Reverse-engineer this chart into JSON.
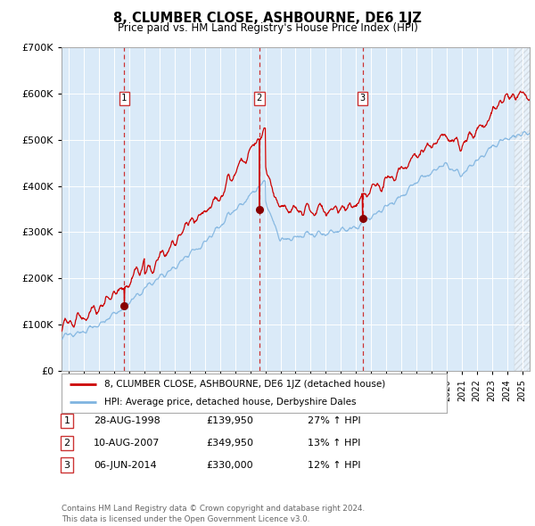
{
  "title": "8, CLUMBER CLOSE, ASHBOURNE, DE6 1JZ",
  "subtitle": "Price paid vs. HM Land Registry's House Price Index (HPI)",
  "ylim": [
    0,
    700000
  ],
  "yticks": [
    0,
    100000,
    200000,
    300000,
    400000,
    500000,
    600000,
    700000
  ],
  "ytick_labels": [
    "£0",
    "£100K",
    "£200K",
    "£300K",
    "£400K",
    "£500K",
    "£600K",
    "£700K"
  ],
  "bg_color": "#daeaf8",
  "hpi_color": "#7fb4e0",
  "price_color": "#cc0000",
  "vline_color": "#cc3333",
  "transactions": [
    {
      "date_num": 1998.65,
      "price": 139950,
      "label": "1"
    },
    {
      "date_num": 2007.6,
      "price": 349950,
      "label": "2"
    },
    {
      "date_num": 2014.43,
      "price": 330000,
      "label": "3"
    }
  ],
  "legend_price_label": "8, CLUMBER CLOSE, ASHBOURNE, DE6 1JZ (detached house)",
  "legend_hpi_label": "HPI: Average price, detached house, Derbyshire Dales",
  "table_rows": [
    {
      "num": "1",
      "date": "28-AUG-1998",
      "price": "£139,950",
      "change": "27% ↑ HPI"
    },
    {
      "num": "2",
      "date": "10-AUG-2007",
      "price": "£349,950",
      "change": "13% ↑ HPI"
    },
    {
      "num": "3",
      "date": "06-JUN-2014",
      "price": "£330,000",
      "change": "12% ↑ HPI"
    }
  ],
  "footer": "Contains HM Land Registry data © Crown copyright and database right 2024.\nThis data is licensed under the Open Government Licence v3.0.",
  "xmin": 1994.5,
  "xmax": 2025.5,
  "hatch_start": 2024.5
}
